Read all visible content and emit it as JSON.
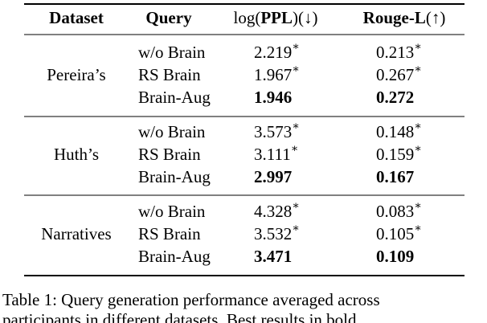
{
  "table": {
    "columns": [
      {
        "parts": [
          {
            "text": "Dataset",
            "bold": true
          }
        ]
      },
      {
        "parts": [
          {
            "text": "Query",
            "bold": true
          }
        ]
      },
      {
        "parts": [
          {
            "text": "log(",
            "bold": false
          },
          {
            "text": "PPL",
            "bold": true
          },
          {
            "text": ")(↓)",
            "bold": false
          }
        ]
      },
      {
        "parts": [
          {
            "text": "Rouge-L",
            "bold": true
          },
          {
            "text": "(↑)",
            "bold": false
          }
        ]
      }
    ],
    "groups": [
      {
        "dataset": "Pereira’s",
        "rows": [
          {
            "query": "w/o Brain",
            "cells": [
              {
                "value": "2.219",
                "mark": "∗"
              },
              {
                "value": "0.213",
                "mark": "∗"
              }
            ]
          },
          {
            "query": "RS Brain",
            "cells": [
              {
                "value": "1.967",
                "mark": "∗"
              },
              {
                "value": "0.267",
                "mark": "∗"
              }
            ]
          },
          {
            "query": "Brain-Aug",
            "cells": [
              {
                "value": "1.946",
                "bold": true
              },
              {
                "value": "0.272",
                "bold": true
              }
            ]
          }
        ]
      },
      {
        "dataset": "Huth’s",
        "rows": [
          {
            "query": "w/o Brain",
            "cells": [
              {
                "value": "3.573",
                "mark": "∗"
              },
              {
                "value": "0.148",
                "mark": "∗"
              }
            ]
          },
          {
            "query": "RS Brain",
            "cells": [
              {
                "value": "3.111",
                "mark": "∗"
              },
              {
                "value": "0.159",
                "mark": "∗"
              }
            ]
          },
          {
            "query": "Brain-Aug",
            "cells": [
              {
                "value": "2.997",
                "bold": true
              },
              {
                "value": "0.167",
                "bold": true
              }
            ]
          }
        ]
      },
      {
        "dataset": "Narratives",
        "rows": [
          {
            "query": "w/o Brain",
            "cells": [
              {
                "value": "4.328",
                "mark": "∗"
              },
              {
                "value": "0.083",
                "mark": "∗"
              }
            ]
          },
          {
            "query": "RS Brain",
            "cells": [
              {
                "value": "3.532",
                "mark": "∗"
              },
              {
                "value": "0.105",
                "mark": "∗"
              }
            ]
          },
          {
            "query": "Brain-Aug",
            "cells": [
              {
                "value": "3.471",
                "bold": true
              },
              {
                "value": "0.109",
                "bold": true
              }
            ]
          }
        ]
      }
    ]
  },
  "caption": {
    "lines": [
      "Table 1: Query generation performance averaged across",
      "participants in different datasets. Best results in bold"
    ]
  }
}
